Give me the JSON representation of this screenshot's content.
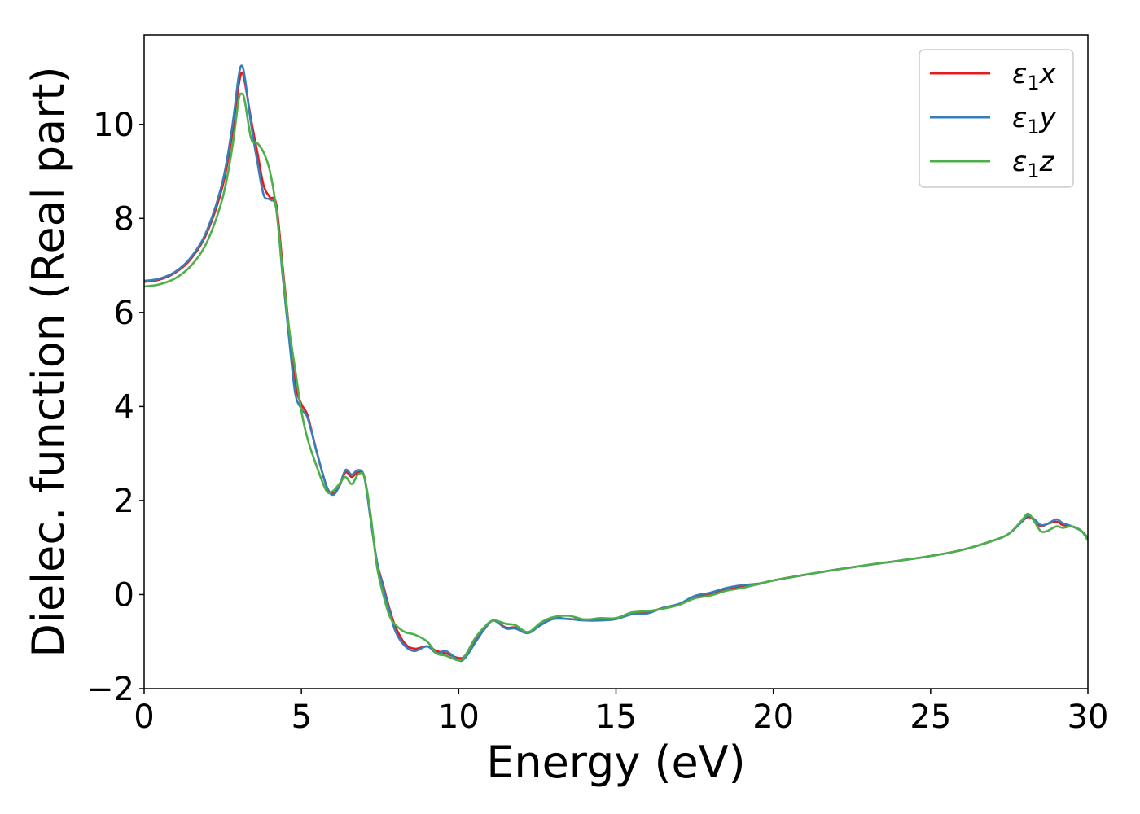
{
  "chart_data": {
    "type": "line",
    "title": "",
    "xlabel": "Energy (eV)",
    "ylabel": "Dielec. function (Real part)",
    "xlim": [
      0,
      30
    ],
    "ylim": [
      -2,
      11.9
    ],
    "x_ticks": [
      0,
      5,
      10,
      15,
      20,
      25,
      30
    ],
    "y_ticks": [
      -2,
      0,
      2,
      4,
      6,
      8,
      10
    ],
    "x_tick_labels": [
      "0",
      "5",
      "10",
      "15",
      "20",
      "25",
      "30"
    ],
    "y_tick_labels": [
      "−2",
      "0",
      "2",
      "4",
      "6",
      "8",
      "10"
    ],
    "grid": false,
    "legend_position": "top-right",
    "series": [
      {
        "name": "ε1x",
        "legend_base": "ε",
        "legend_sub": "1",
        "legend_suffix": "x",
        "color": "#e41a1c",
        "points": [
          [
            0,
            6.65
          ],
          [
            0.5,
            6.7
          ],
          [
            1,
            6.85
          ],
          [
            1.5,
            7.15
          ],
          [
            2,
            7.7
          ],
          [
            2.5,
            8.7
          ],
          [
            2.8,
            9.8
          ],
          [
            3,
            10.8
          ],
          [
            3.1,
            11.1
          ],
          [
            3.2,
            10.9
          ],
          [
            3.4,
            10.1
          ],
          [
            3.6,
            9.4
          ],
          [
            3.8,
            8.7
          ],
          [
            4,
            8.45
          ],
          [
            4.2,
            8.3
          ],
          [
            4.4,
            7.0
          ],
          [
            4.6,
            5.7
          ],
          [
            4.8,
            4.5
          ],
          [
            5,
            4.05
          ],
          [
            5.2,
            3.8
          ],
          [
            5.5,
            3.0
          ],
          [
            5.8,
            2.3
          ],
          [
            6,
            2.15
          ],
          [
            6.2,
            2.3
          ],
          [
            6.4,
            2.6
          ],
          [
            6.6,
            2.5
          ],
          [
            6.8,
            2.6
          ],
          [
            7,
            2.5
          ],
          [
            7.2,
            1.6
          ],
          [
            7.4,
            0.7
          ],
          [
            7.6,
            0.2
          ],
          [
            7.8,
            -0.3
          ],
          [
            8,
            -0.7
          ],
          [
            8.3,
            -1.05
          ],
          [
            8.6,
            -1.15
          ],
          [
            9,
            -1.1
          ],
          [
            9.3,
            -1.2
          ],
          [
            9.6,
            -1.25
          ],
          [
            10,
            -1.35
          ],
          [
            10.2,
            -1.3
          ],
          [
            10.5,
            -1.0
          ],
          [
            10.8,
            -0.75
          ],
          [
            11.1,
            -0.55
          ],
          [
            11.5,
            -0.7
          ],
          [
            11.8,
            -0.7
          ],
          [
            12.2,
            -0.8
          ],
          [
            12.6,
            -0.65
          ],
          [
            13,
            -0.5
          ],
          [
            13.5,
            -0.52
          ],
          [
            14,
            -0.53
          ],
          [
            14.5,
            -0.52
          ],
          [
            15,
            -0.52
          ],
          [
            15.5,
            -0.38
          ],
          [
            16,
            -0.38
          ],
          [
            16.5,
            -0.28
          ],
          [
            17,
            -0.2
          ],
          [
            17.5,
            -0.05
          ],
          [
            18,
            0.02
          ],
          [
            18.5,
            0.12
          ],
          [
            19,
            0.18
          ],
          [
            19.5,
            0.22
          ],
          [
            20,
            0.3
          ],
          [
            21,
            0.42
          ],
          [
            22,
            0.53
          ],
          [
            23,
            0.63
          ],
          [
            24,
            0.72
          ],
          [
            25,
            0.82
          ],
          [
            26,
            0.95
          ],
          [
            27,
            1.15
          ],
          [
            27.5,
            1.3
          ],
          [
            27.9,
            1.55
          ],
          [
            28.1,
            1.65
          ],
          [
            28.3,
            1.58
          ],
          [
            28.5,
            1.45
          ],
          [
            28.7,
            1.5
          ],
          [
            29,
            1.55
          ],
          [
            29.2,
            1.48
          ],
          [
            29.5,
            1.45
          ],
          [
            29.8,
            1.35
          ],
          [
            30,
            1.2
          ]
        ]
      },
      {
        "name": "ε1y",
        "legend_base": "ε",
        "legend_sub": "1",
        "legend_suffix": "y",
        "color": "#377eb8",
        "points": [
          [
            0,
            6.67
          ],
          [
            0.5,
            6.72
          ],
          [
            1,
            6.87
          ],
          [
            1.5,
            7.18
          ],
          [
            2,
            7.75
          ],
          [
            2.5,
            8.8
          ],
          [
            2.8,
            9.95
          ],
          [
            3,
            11.0
          ],
          [
            3.1,
            11.25
          ],
          [
            3.2,
            11.0
          ],
          [
            3.4,
            10.0
          ],
          [
            3.6,
            9.2
          ],
          [
            3.8,
            8.5
          ],
          [
            4,
            8.4
          ],
          [
            4.2,
            8.2
          ],
          [
            4.4,
            6.8
          ],
          [
            4.6,
            5.5
          ],
          [
            4.8,
            4.3
          ],
          [
            5,
            3.95
          ],
          [
            5.2,
            3.75
          ],
          [
            5.5,
            3.0
          ],
          [
            5.8,
            2.3
          ],
          [
            6,
            2.12
          ],
          [
            6.2,
            2.3
          ],
          [
            6.4,
            2.65
          ],
          [
            6.6,
            2.55
          ],
          [
            6.8,
            2.65
          ],
          [
            7,
            2.5
          ],
          [
            7.2,
            1.6
          ],
          [
            7.4,
            0.7
          ],
          [
            7.6,
            0.15
          ],
          [
            7.8,
            -0.35
          ],
          [
            8,
            -0.8
          ],
          [
            8.3,
            -1.1
          ],
          [
            8.6,
            -1.2
          ],
          [
            9,
            -1.1
          ],
          [
            9.3,
            -1.25
          ],
          [
            9.6,
            -1.2
          ],
          [
            10,
            -1.4
          ],
          [
            10.2,
            -1.35
          ],
          [
            10.5,
            -1.05
          ],
          [
            10.8,
            -0.75
          ],
          [
            11.1,
            -0.55
          ],
          [
            11.5,
            -0.72
          ],
          [
            11.8,
            -0.72
          ],
          [
            12.2,
            -0.82
          ],
          [
            12.6,
            -0.65
          ],
          [
            13,
            -0.52
          ],
          [
            13.5,
            -0.52
          ],
          [
            14,
            -0.55
          ],
          [
            14.5,
            -0.55
          ],
          [
            15,
            -0.52
          ],
          [
            15.5,
            -0.42
          ],
          [
            16,
            -0.4
          ],
          [
            16.5,
            -0.28
          ],
          [
            17,
            -0.2
          ],
          [
            17.5,
            -0.03
          ],
          [
            18,
            0.04
          ],
          [
            18.5,
            0.14
          ],
          [
            19,
            0.2
          ],
          [
            19.5,
            0.23
          ],
          [
            20,
            0.3
          ],
          [
            21,
            0.42
          ],
          [
            22,
            0.53
          ],
          [
            23,
            0.63
          ],
          [
            24,
            0.72
          ],
          [
            25,
            0.82
          ],
          [
            26,
            0.95
          ],
          [
            27,
            1.15
          ],
          [
            27.5,
            1.3
          ],
          [
            27.9,
            1.55
          ],
          [
            28.1,
            1.68
          ],
          [
            28.3,
            1.6
          ],
          [
            28.5,
            1.48
          ],
          [
            28.7,
            1.5
          ],
          [
            29,
            1.6
          ],
          [
            29.2,
            1.52
          ],
          [
            29.5,
            1.45
          ],
          [
            29.8,
            1.35
          ],
          [
            30,
            1.2
          ]
        ]
      },
      {
        "name": "ε1z",
        "legend_base": "ε",
        "legend_sub": "1",
        "legend_suffix": "z",
        "color": "#4daf4a",
        "points": [
          [
            0,
            6.55
          ],
          [
            0.5,
            6.6
          ],
          [
            1,
            6.73
          ],
          [
            1.5,
            7.0
          ],
          [
            2,
            7.5
          ],
          [
            2.5,
            8.45
          ],
          [
            2.8,
            9.5
          ],
          [
            3,
            10.5
          ],
          [
            3.1,
            10.65
          ],
          [
            3.2,
            10.5
          ],
          [
            3.4,
            9.7
          ],
          [
            3.6,
            9.6
          ],
          [
            3.8,
            9.4
          ],
          [
            4,
            9.0
          ],
          [
            4.2,
            8.2
          ],
          [
            4.4,
            6.9
          ],
          [
            4.6,
            5.7
          ],
          [
            4.8,
            4.8
          ],
          [
            5,
            3.9
          ],
          [
            5.2,
            3.3
          ],
          [
            5.5,
            2.7
          ],
          [
            5.8,
            2.2
          ],
          [
            6,
            2.2
          ],
          [
            6.2,
            2.35
          ],
          [
            6.4,
            2.5
          ],
          [
            6.6,
            2.35
          ],
          [
            6.8,
            2.55
          ],
          [
            7,
            2.5
          ],
          [
            7.2,
            1.7
          ],
          [
            7.4,
            0.6
          ],
          [
            7.6,
            0.0
          ],
          [
            7.8,
            -0.45
          ],
          [
            8,
            -0.65
          ],
          [
            8.3,
            -0.8
          ],
          [
            8.6,
            -0.85
          ],
          [
            9,
            -1.0
          ],
          [
            9.3,
            -1.25
          ],
          [
            9.6,
            -1.3
          ],
          [
            10,
            -1.4
          ],
          [
            10.2,
            -1.3
          ],
          [
            10.5,
            -0.95
          ],
          [
            10.8,
            -0.7
          ],
          [
            11.1,
            -0.55
          ],
          [
            11.5,
            -0.62
          ],
          [
            11.8,
            -0.65
          ],
          [
            12.2,
            -0.8
          ],
          [
            12.6,
            -0.6
          ],
          [
            13,
            -0.48
          ],
          [
            13.5,
            -0.45
          ],
          [
            14,
            -0.53
          ],
          [
            14.5,
            -0.5
          ],
          [
            15,
            -0.5
          ],
          [
            15.5,
            -0.38
          ],
          [
            16,
            -0.35
          ],
          [
            16.5,
            -0.3
          ],
          [
            17,
            -0.22
          ],
          [
            17.5,
            -0.08
          ],
          [
            18,
            -0.02
          ],
          [
            18.5,
            0.08
          ],
          [
            19,
            0.14
          ],
          [
            19.5,
            0.22
          ],
          [
            20,
            0.3
          ],
          [
            21,
            0.42
          ],
          [
            22,
            0.53
          ],
          [
            23,
            0.63
          ],
          [
            24,
            0.72
          ],
          [
            25,
            0.82
          ],
          [
            26,
            0.95
          ],
          [
            27,
            1.15
          ],
          [
            27.5,
            1.3
          ],
          [
            27.9,
            1.58
          ],
          [
            28.1,
            1.72
          ],
          [
            28.3,
            1.55
          ],
          [
            28.5,
            1.35
          ],
          [
            28.7,
            1.35
          ],
          [
            29,
            1.45
          ],
          [
            29.2,
            1.42
          ],
          [
            29.5,
            1.45
          ],
          [
            29.8,
            1.35
          ],
          [
            30,
            1.15
          ]
        ]
      }
    ]
  }
}
